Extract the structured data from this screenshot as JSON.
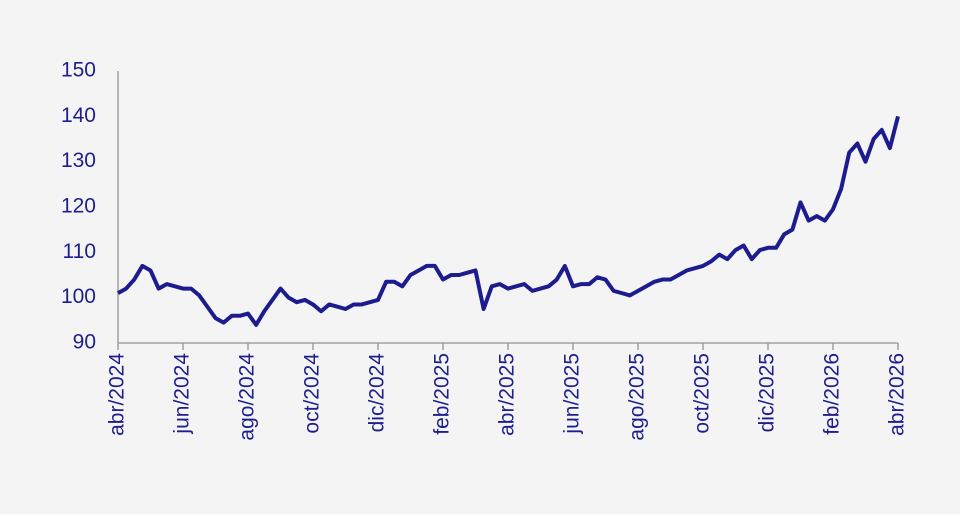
{
  "chart_data": {
    "type": "line",
    "x": [
      0,
      0.25,
      0.5,
      0.75,
      1,
      1.25,
      1.5,
      1.75,
      2,
      2.25,
      2.5,
      2.75,
      3,
      3.25,
      3.5,
      3.75,
      4,
      4.25,
      4.5,
      4.75,
      5,
      5.25,
      5.5,
      5.75,
      6,
      6.25,
      6.5,
      6.75,
      7,
      7.25,
      7.5,
      7.75,
      8,
      8.25,
      8.5,
      8.75,
      9,
      9.25,
      9.5,
      9.75,
      10,
      10.25,
      10.5,
      10.75,
      11,
      11.25,
      11.5,
      11.75,
      12,
      12.25,
      12.5,
      12.75,
      13,
      13.25,
      13.5,
      13.75,
      14,
      14.25,
      14.5,
      14.75,
      15,
      15.25,
      15.5,
      15.75,
      16,
      16.25,
      16.5,
      16.75,
      17,
      17.25,
      17.5,
      17.75,
      18,
      18.25,
      18.5,
      18.75,
      19,
      19.25,
      19.5,
      19.75,
      20,
      20.25,
      20.5,
      20.75,
      21,
      21.25,
      21.5,
      21.75,
      22,
      22.25,
      22.5,
      22.75,
      23,
      23.25,
      23.5,
      23.75,
      24
    ],
    "series": [
      {
        "color": "#1c1c8f",
        "values": [
          101,
          102,
          104,
          107,
          106,
          102,
          103,
          102.5,
          102,
          102,
          100.5,
          98,
          95.5,
          94.5,
          96,
          96,
          96.5,
          94,
          97,
          99.5,
          102,
          100,
          99,
          99.5,
          98.5,
          97,
          98.5,
          98,
          97.5,
          98.5,
          98.5,
          99,
          99.5,
          103.5,
          103.5,
          102.5,
          105,
          106,
          107,
          107,
          104,
          105,
          105,
          105.5,
          106,
          97.5,
          102.5,
          103,
          102,
          102.5,
          103,
          101.5,
          102,
          102.5,
          104,
          107,
          102.5,
          103,
          103,
          104.5,
          104,
          101.5,
          101,
          100.5,
          101.5,
          102.5,
          103.5,
          104,
          104,
          105,
          106,
          106.5,
          107,
          108,
          109.5,
          108.5,
          110.5,
          111.5,
          108.5,
          110.5,
          111,
          111,
          114,
          115,
          121,
          117,
          118,
          117,
          119.5,
          124,
          132,
          134,
          130,
          135,
          137,
          133,
          140
        ]
      }
    ],
    "xlim": [
      0,
      24
    ],
    "xticks": [
      {
        "value": 0,
        "label": "abr/2024"
      },
      {
        "value": 2,
        "label": "jun/2024"
      },
      {
        "value": 4,
        "label": "ago/2024"
      },
      {
        "value": 6,
        "label": "oct/2024"
      },
      {
        "value": 8,
        "label": "dic/2024"
      },
      {
        "value": 10,
        "label": "feb/2025"
      },
      {
        "value": 12,
        "label": "abr/2025"
      },
      {
        "value": 14,
        "label": "jun/2025"
      },
      {
        "value": 16,
        "label": "ago/2025"
      },
      {
        "value": 18,
        "label": "oct/2025"
      },
      {
        "value": 20,
        "label": "dic/2025"
      },
      {
        "value": 22,
        "label": "feb/2026"
      },
      {
        "value": 24,
        "label": "abr/2026"
      }
    ],
    "ylim": [
      90,
      150
    ],
    "yticks": [
      90,
      100,
      110,
      120,
      130,
      140,
      150
    ]
  }
}
